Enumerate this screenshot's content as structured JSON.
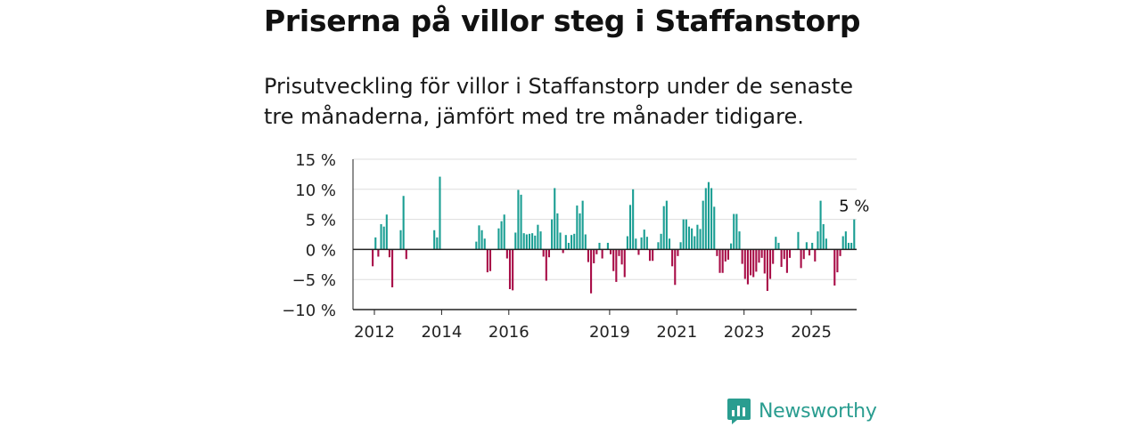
{
  "title": "Priserna på villor steg i Staffanstorp",
  "subtitle": "Prisutveckling för villor i Staffanstorp under de senaste tre månaderna, jämfört med tre månader tidigare.",
  "brand": {
    "name": "Newsworthy",
    "icon": "newsworthy-logo-icon"
  },
  "colors": {
    "positive": "#1a9e93",
    "negative": "#a80d47",
    "grid": "#dddddd",
    "axis": "#222222"
  },
  "chart_data": {
    "type": "bar",
    "title": "",
    "xlabel": "",
    "ylabel": "",
    "ylim": [
      -10,
      15
    ],
    "y_ticks": [
      15,
      10,
      5,
      0,
      -5,
      -10
    ],
    "y_tick_labels": [
      "15 %",
      "10 %",
      "5 %",
      "0 %",
      "−5 %",
      "−10 %"
    ],
    "x_ticks": [
      2012,
      2014,
      2016,
      2019,
      2021,
      2023,
      2025
    ],
    "x_tick_labels": [
      "2012",
      "2014",
      "2016",
      "2019",
      "2021",
      "2023",
      "2025"
    ],
    "annotation": {
      "text": "5 %",
      "applies_to": "last_value"
    },
    "grid": true,
    "legend": "none",
    "series": [
      {
        "x_start": 2011.95,
        "x_step": 0.0833,
        "values": [
          -2.8,
          2.0,
          -1.2,
          4.2,
          3.8,
          5.8,
          -1.3,
          -6.3,
          0,
          0,
          3.2,
          8.9,
          -1.6,
          0,
          0,
          0,
          0,
          0,
          0,
          0,
          0,
          0,
          3.2,
          2.0,
          12.1,
          0,
          0,
          0,
          0,
          0,
          0,
          0,
          0,
          0,
          0,
          0,
          0,
          1.3,
          4.0,
          3.2,
          1.8,
          -3.8,
          -3.6,
          0,
          0,
          3.5,
          4.7,
          5.8,
          -1.5,
          -6.6,
          -6.8,
          2.8,
          9.9,
          9.1,
          2.7,
          2.5,
          2.6,
          2.7,
          2.3,
          4.1,
          3.0,
          -1.2,
          -5.2,
          -1.3,
          5.0,
          10.2,
          6.0,
          2.8,
          -0.6,
          2.4,
          1.1,
          2.4,
          2.6,
          7.3,
          6.0,
          8.1,
          2.5,
          -2.1,
          -7.3,
          -2.3,
          -0.8,
          1.1,
          -1.5,
          0,
          1.1,
          -0.8,
          -3.6,
          -5.4,
          -1.1,
          -2.5,
          -4.6,
          2.2,
          7.4,
          10.0,
          1.8,
          -0.9,
          2.0,
          3.3,
          2.1,
          -1.9,
          -1.9,
          0,
          1.2,
          2.6,
          7.2,
          8.1,
          1.8,
          -2.8,
          -5.9,
          -1.1,
          1.2,
          5.0,
          5.0,
          3.8,
          3.5,
          2.2,
          4.1,
          3.4,
          8.1,
          10.2,
          11.2,
          10.2,
          7.1,
          -1.1,
          -3.9,
          -3.9,
          -2.0,
          -1.7,
          1.0,
          5.9,
          5.9,
          3.0,
          -2.4,
          -4.9,
          -5.8,
          -4.3,
          -4.6,
          -3.7,
          -2.2,
          -1.4,
          -4.0,
          -6.9,
          -4.9,
          -2.4,
          2.1,
          1.1,
          -2.9,
          -1.6,
          -3.9,
          -1.4,
          0,
          0,
          2.9,
          -3.1,
          -1.6,
          1.2,
          -1.0,
          1.1,
          -2.0,
          3.0,
          8.1,
          4.2,
          1.8,
          0,
          0,
          -6.0,
          -3.8,
          -1.1,
          2.2,
          3.0,
          1.1,
          1.1,
          5.0
        ]
      }
    ]
  }
}
